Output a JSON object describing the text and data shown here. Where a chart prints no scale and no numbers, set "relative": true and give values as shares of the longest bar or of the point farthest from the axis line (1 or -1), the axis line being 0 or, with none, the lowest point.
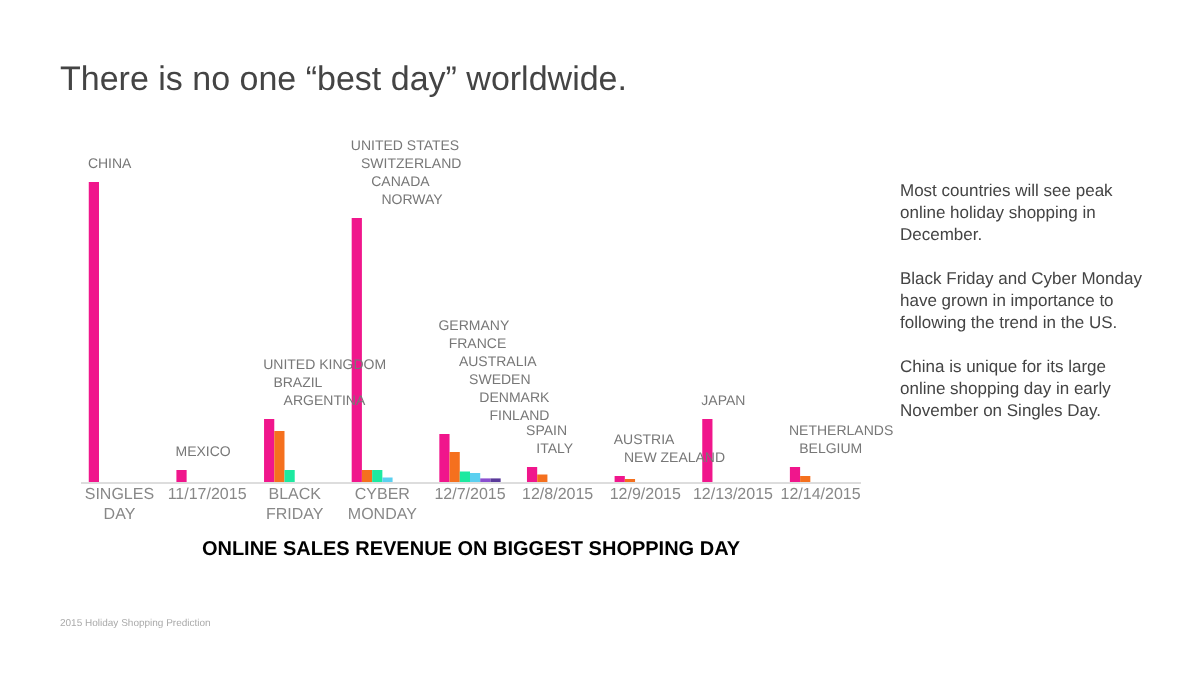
{
  "chart_data": {
    "type": "bar",
    "title": "There is no one “best day” worldwide.",
    "xlabel": "ONLINE SALES REVENUE ON BIGGEST SHOPPING DAY",
    "relative": true,
    "grid": false,
    "categories": [
      "SINGLES DAY",
      "11/17/2015",
      "BLACK FRIDAY",
      "CYBER MONDAY",
      "12/7/2015",
      "12/8/2015",
      "12/9/2015",
      "12/13/2015",
      "12/14/2015"
    ],
    "series": [
      {
        "color": "#f0168c",
        "values": [
          1.0,
          0.04,
          0.21,
          0.88,
          0.16,
          0.05,
          0.02,
          0.21,
          0.05
        ]
      },
      {
        "color": "#f5701e",
        "values": [
          null,
          null,
          0.17,
          0.04,
          0.1,
          0.025,
          0.01,
          null,
          0.02
        ]
      },
      {
        "color": "#1de9a0",
        "values": [
          null,
          null,
          0.04,
          0.04,
          0.035,
          null,
          null,
          null,
          null
        ]
      },
      {
        "color": "#5bd0f0",
        "values": [
          null,
          null,
          null,
          0.015,
          0.03,
          null,
          null,
          null,
          null
        ]
      },
      {
        "color": "#8a4fd0",
        "values": [
          null,
          null,
          null,
          null,
          0.012,
          null,
          null,
          null,
          null
        ]
      },
      {
        "color": "#5a3a9a",
        "values": [
          null,
          null,
          null,
          null,
          0.012,
          null,
          null,
          null,
          null
        ]
      }
    ],
    "annotations": [
      "CHINA",
      "MEXICO",
      "UNITED KINGDOM",
      "BRAZIL",
      "ARGENTINA",
      "UNITED STATES",
      "SWITZERLAND",
      "CANADA",
      "NORWAY",
      "GERMANY",
      "FRANCE",
      "AUSTRALIA",
      "SWEDEN",
      "DENMARK",
      "FINLAND",
      "SPAIN",
      "ITALY",
      "AUSTRIA",
      "NEW ZEALAND",
      "JAPAN",
      "NETHERLANDS",
      "BELGIUM",
      "Most countries will see peak online holiday shopping in December.",
      "Black Friday and Cyber Monday have grown in importance to following the trend in the US.",
      "China is unique for its large online shopping day in early November on Singles Day.",
      "2015 Holiday Shopping Prediction"
    ]
  }
}
